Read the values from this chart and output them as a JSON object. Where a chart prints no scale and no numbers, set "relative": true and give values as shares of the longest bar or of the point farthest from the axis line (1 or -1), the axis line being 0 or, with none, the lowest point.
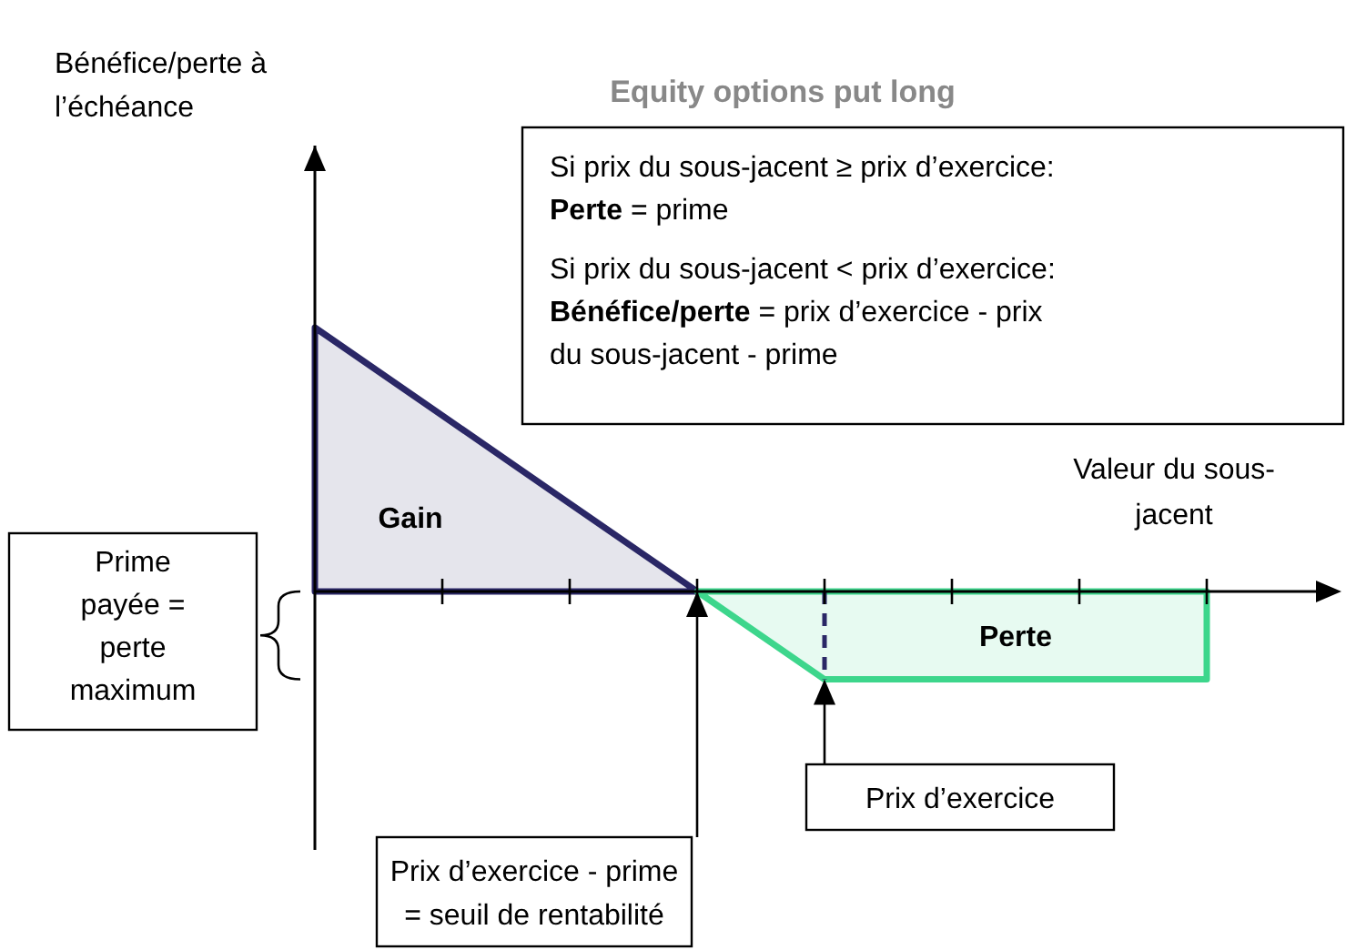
{
  "chart_data": {
    "type": "area",
    "title": "Equity options put long",
    "xlabel": "Valeur du sous-jacent",
    "relative": true,
    "categories": [
      null,
      null,
      null,
      null,
      null,
      null,
      null,
      null
    ],
    "series": [
      {
        "color": "#2a2766",
        "values": [
          1,
          0.667,
          0.333,
          0,
          null,
          null,
          null,
          null
        ]
      },
      {
        "color": "#3dd68c",
        "values": [
          null,
          null,
          null,
          0,
          -0.333,
          -0.333,
          -0.333,
          -0.333
        ]
      }
    ],
    "annotations": [
      "Si prix du sous-jacent ≥ prix d’exercice:\nPerte = prime\nSi prix du sous-jacent < prix d’exercice:\nBénéfice/perte = prix d’exercice - prix du sous-jacent - prime",
      "Gain",
      "Perte",
      "Prime payée = perte maximum",
      "Prix d’exercice - prime = seuil de rentabilité",
      "Prix d’exercice",
      "Bénéfice/perte à l’échéance"
    ]
  }
}
